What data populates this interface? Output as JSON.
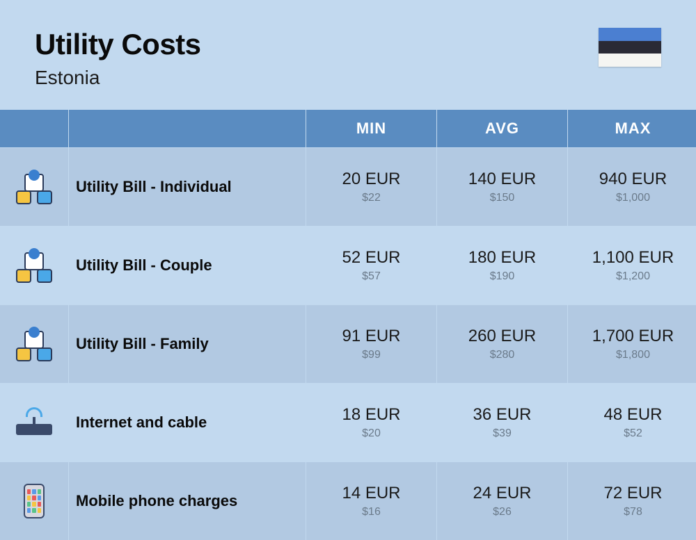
{
  "header": {
    "title": "Utility Costs",
    "subtitle": "Estonia",
    "flag_colors": [
      "#4b7fd1",
      "#2a2a35",
      "#f5f5f2"
    ]
  },
  "columns": {
    "min": "MIN",
    "avg": "AVG",
    "max": "MAX"
  },
  "rows": [
    {
      "label": "Utility Bill - Individual",
      "icon": "utility",
      "min_eur": "20 EUR",
      "min_usd": "$22",
      "avg_eur": "140 EUR",
      "avg_usd": "$150",
      "max_eur": "940 EUR",
      "max_usd": "$1,000"
    },
    {
      "label": "Utility Bill - Couple",
      "icon": "utility",
      "min_eur": "52 EUR",
      "min_usd": "$57",
      "avg_eur": "180 EUR",
      "avg_usd": "$190",
      "max_eur": "1,100 EUR",
      "max_usd": "$1,200"
    },
    {
      "label": "Utility Bill - Family",
      "icon": "utility",
      "min_eur": "91 EUR",
      "min_usd": "$99",
      "avg_eur": "260 EUR",
      "avg_usd": "$280",
      "max_eur": "1,700 EUR",
      "max_usd": "$1,800"
    },
    {
      "label": "Internet and cable",
      "icon": "router",
      "min_eur": "18 EUR",
      "min_usd": "$20",
      "avg_eur": "36 EUR",
      "avg_usd": "$39",
      "max_eur": "48 EUR",
      "max_usd": "$52"
    },
    {
      "label": "Mobile phone charges",
      "icon": "phone",
      "min_eur": "14 EUR",
      "min_usd": "$16",
      "avg_eur": "24 EUR",
      "avg_usd": "$26",
      "max_eur": "72 EUR",
      "max_usd": "$78"
    }
  ],
  "colors": {
    "page_bg": "#c2d9ef",
    "header_bg": "#5a8cc1",
    "row_bg": "#b2c9e2",
    "row_alt_bg": "#c2d9ef",
    "eur_text": "#1a1a1a",
    "usd_text": "#6a7a8a"
  }
}
